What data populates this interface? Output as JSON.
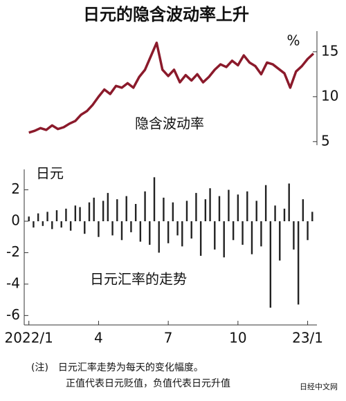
{
  "chart_data": [
    {
      "type": "line",
      "title": "日元的隐含波动率上升",
      "annotation": "隐含波动率",
      "ylabel": "%",
      "x": [
        0,
        0.25,
        0.5,
        0.75,
        1,
        1.25,
        1.5,
        1.75,
        2,
        2.25,
        2.5,
        2.75,
        3,
        3.25,
        3.5,
        3.75,
        4,
        4.25,
        4.5,
        4.75,
        5,
        5.25,
        5.5,
        5.75,
        6,
        6.25,
        6.5,
        6.75,
        7,
        7.25,
        7.5,
        7.75,
        8,
        8.25,
        8.5,
        8.75,
        9,
        9.25,
        9.5,
        9.75,
        10,
        10.25,
        10.5,
        10.75,
        11,
        11.25,
        11.5,
        11.75,
        12,
        12.25
      ],
      "values": [
        6.0,
        6.2,
        6.5,
        6.3,
        6.8,
        6.4,
        6.6,
        7.0,
        7.3,
        8.0,
        8.4,
        9.1,
        10.0,
        10.8,
        10.3,
        11.2,
        11.0,
        11.5,
        11.0,
        12.2,
        13.0,
        14.5,
        16.0,
        13.0,
        12.3,
        13.0,
        11.6,
        12.4,
        11.8,
        12.5,
        11.6,
        12.2,
        13.0,
        13.6,
        13.3,
        14.0,
        13.5,
        14.6,
        13.8,
        13.4,
        12.5,
        13.8,
        13.6,
        13.1,
        12.6,
        11.0,
        12.8,
        13.4,
        14.2,
        14.8
      ],
      "color": "#8b1a2b",
      "xlim": [
        -0.2,
        12.4
      ],
      "ylim": [
        4.6,
        17.3
      ],
      "yticks": [
        5,
        10,
        15
      ],
      "y_axis_side": "right"
    },
    {
      "type": "bar",
      "annotation": "日元汇率的走势",
      "ylabel": "日元",
      "x": [
        0,
        0.2,
        0.4,
        0.6,
        0.8,
        1,
        1.2,
        1.4,
        1.6,
        1.8,
        2,
        2.2,
        2.4,
        2.6,
        2.8,
        3,
        3.2,
        3.4,
        3.6,
        3.8,
        4,
        4.2,
        4.4,
        4.6,
        4.8,
        5,
        5.2,
        5.4,
        5.6,
        5.8,
        6,
        6.2,
        6.4,
        6.6,
        6.8,
        7,
        7.2,
        7.4,
        7.6,
        7.8,
        8,
        8.2,
        8.4,
        8.6,
        8.8,
        9,
        9.2,
        9.4,
        9.6,
        9.8,
        10,
        10.2,
        10.4,
        10.6,
        10.8,
        11,
        11.2,
        11.4,
        11.6,
        11.8,
        12,
        12.2
      ],
      "values": [
        0.3,
        -0.4,
        0.5,
        -0.3,
        0.6,
        -0.5,
        0.7,
        -0.4,
        0.8,
        -0.6,
        1.0,
        0.9,
        -0.8,
        1.2,
        1.5,
        -1.0,
        1.3,
        1.8,
        -0.9,
        1.4,
        -1.2,
        1.6,
        -0.7,
        1.1,
        -1.3,
        1.9,
        -1.5,
        2.8,
        -2.0,
        1.5,
        -1.4,
        1.2,
        -0.9,
        -1.6,
        1.3,
        -1.1,
        1.8,
        -2.2,
        1.4,
        2.1,
        -1.8,
        1.6,
        -2.3,
        2.0,
        -1.2,
        1.7,
        -1.5,
        1.9,
        -2.1,
        1.3,
        -1.6,
        2.3,
        -5.5,
        1.0,
        -2.5,
        0.8,
        2.4,
        -1.8,
        -5.3,
        1.4,
        -1.2,
        0.6
      ],
      "color": "#222222",
      "xlim": [
        -0.2,
        12.4
      ],
      "ylim": [
        -6.6,
        3.3
      ],
      "yticks": [
        -6,
        -4,
        -2,
        0,
        2
      ],
      "y_axis_side": "left",
      "xticks": [
        {
          "value": 0,
          "label": "2022/1"
        },
        {
          "value": 3,
          "label": "4"
        },
        {
          "value": 6,
          "label": "7"
        },
        {
          "value": 9,
          "label": "10"
        },
        {
          "value": 12,
          "label": "23/1"
        }
      ]
    }
  ],
  "notes": [
    "(注)　日元汇率走势为每天的变化幅度。",
    "正值代表日元贬值，负值代表日元升值"
  ],
  "watermark": "日经中文网"
}
